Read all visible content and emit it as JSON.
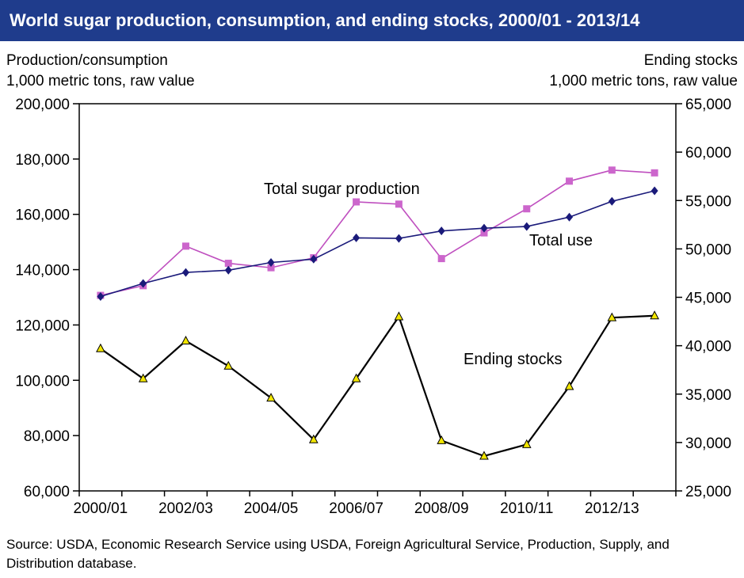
{
  "title": "World sugar production, consumption, and ending stocks, 2000/01 - 2013/14",
  "left_axis": {
    "line1": "Production/consumption",
    "line2": "1,000 metric tons, raw value"
  },
  "right_axis": {
    "line1": "Ending stocks",
    "line2": "1,000 metric tons, raw value"
  },
  "source": "Source: USDA, Economic Research Service using USDA, Foreign Agricultural Service, Production, Supply, and Distribution database.",
  "colors": {
    "title_bg": "#1f3c8c",
    "production": "#bf4fbf",
    "production_marker": "#cc66cc",
    "use": "#1a1a7a",
    "stocks_line": "#000000",
    "stocks_marker": "#f2e600"
  },
  "chart_data": {
    "type": "line",
    "x": [
      "2000/01",
      "2001/02",
      "2002/03",
      "2003/04",
      "2004/05",
      "2005/06",
      "2006/07",
      "2007/08",
      "2008/09",
      "2009/10",
      "2010/11",
      "2011/12",
      "2012/13",
      "2013/14"
    ],
    "x_tick_labels": [
      "2000/01",
      "2002/03",
      "2004/05",
      "2006/07",
      "2008/09",
      "2010/11",
      "2012/13"
    ],
    "y_left": {
      "lim": [
        60000,
        200000
      ],
      "ticks": [
        "60,000",
        "80,000",
        "100,000",
        "120,000",
        "140,000",
        "160,000",
        "180,000",
        "200,000"
      ]
    },
    "y_right": {
      "lim": [
        25000,
        65000
      ],
      "ticks": [
        "25,000",
        "30,000",
        "35,000",
        "40,000",
        "45,000",
        "50,000",
        "55,000",
        "60,000",
        "65,000"
      ]
    },
    "series": [
      {
        "name": "Total sugar production",
        "axis": "left",
        "marker": "square",
        "values": [
          130700,
          134200,
          148500,
          142300,
          140700,
          144300,
          164500,
          163700,
          144000,
          153300,
          162000,
          172000,
          176000,
          175000
        ]
      },
      {
        "name": "Total use",
        "axis": "left",
        "marker": "diamond",
        "values": [
          130300,
          135000,
          139000,
          139800,
          142600,
          143800,
          151500,
          151300,
          154000,
          155000,
          155600,
          159000,
          164700,
          168500
        ]
      },
      {
        "name": "Ending stocks",
        "axis": "right",
        "marker": "triangle",
        "values": [
          39700,
          36600,
          40500,
          37900,
          34600,
          30300,
          36600,
          43000,
          30200,
          28600,
          29800,
          35800,
          42900,
          43100
        ]
      }
    ],
    "annotations": [
      "Total sugar production",
      "Total use",
      "Ending stocks"
    ],
    "grid": false
  }
}
